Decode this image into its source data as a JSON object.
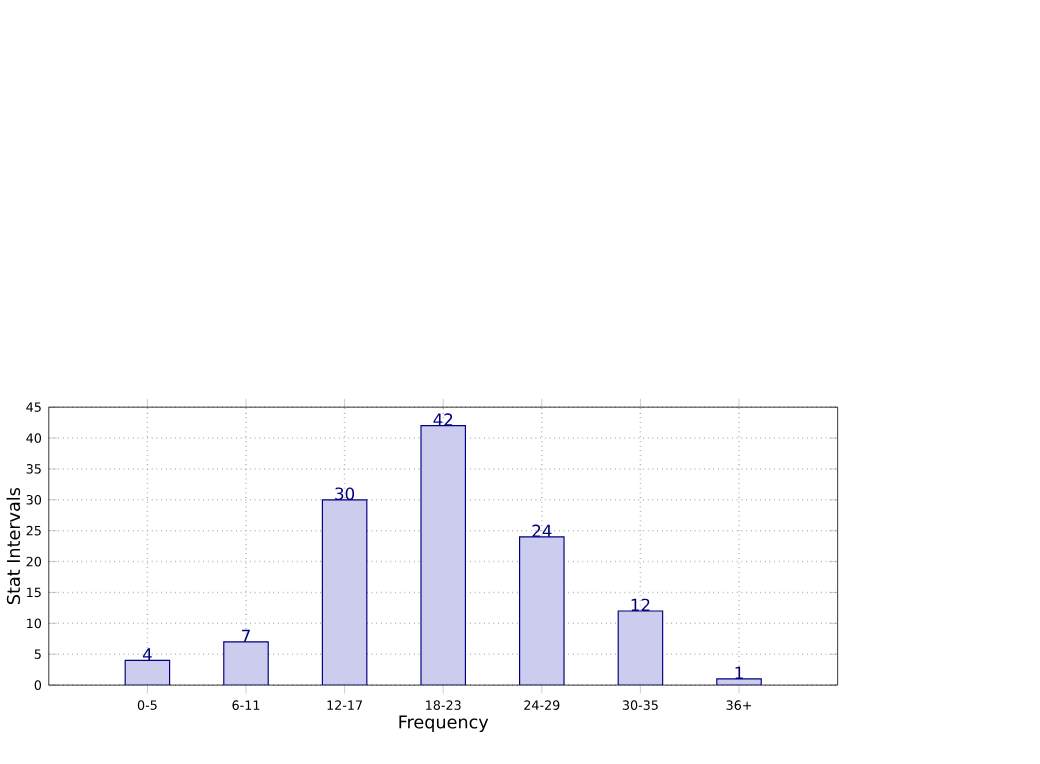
{
  "chart_data": {
    "type": "bar",
    "xlabel": "Frequency",
    "ylabel": "Stat Intervals",
    "categories": [
      "0-5",
      "6-11",
      "12-17",
      "18-23",
      "24-29",
      "30-35",
      "36+"
    ],
    "values": [
      4,
      7,
      30,
      42,
      24,
      12,
      1
    ],
    "color": "#ccccee",
    "ylim": [
      0,
      45
    ],
    "yticks": [
      0,
      5,
      10,
      15,
      20,
      25,
      30,
      35,
      40,
      45
    ],
    "grid": true,
    "data_labels": true
  }
}
